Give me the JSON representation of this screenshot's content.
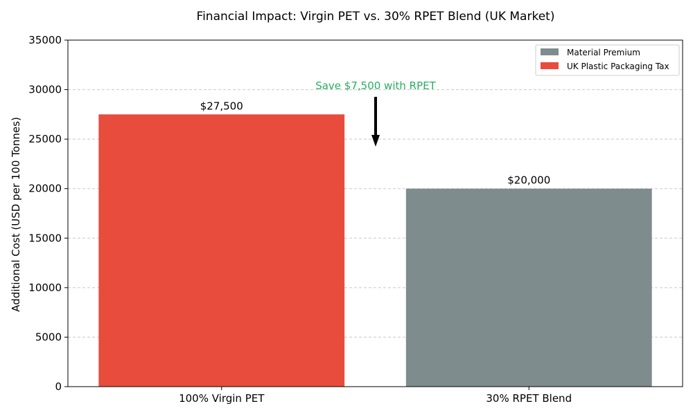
{
  "chart_data": {
    "type": "bar",
    "title": "Financial Impact: Virgin PET vs. 30% RPET Blend (UK Market)",
    "xlabel": "",
    "ylabel": "Additional Cost (USD per 100 Tonnes)",
    "ylim": [
      0,
      35000
    ],
    "yticks": [
      0,
      5000,
      10000,
      15000,
      20000,
      25000,
      30000,
      35000
    ],
    "grid": "horizontal dashed",
    "legend_position": "top-right",
    "categories": [
      "100% Virgin PET",
      "30% RPET Blend"
    ],
    "series": [
      {
        "name": "Material Premium",
        "color": "#7f8c8d",
        "values": [
          0,
          20000
        ]
      },
      {
        "name": "UK Plastic Packaging Tax",
        "color": "#e74c3c",
        "values": [
          27500,
          0
        ]
      }
    ],
    "data_labels": [
      "$27,500",
      "$20,000"
    ],
    "annotation": {
      "text": "Save $7,500 with RPET",
      "color": "#27ae60"
    }
  }
}
